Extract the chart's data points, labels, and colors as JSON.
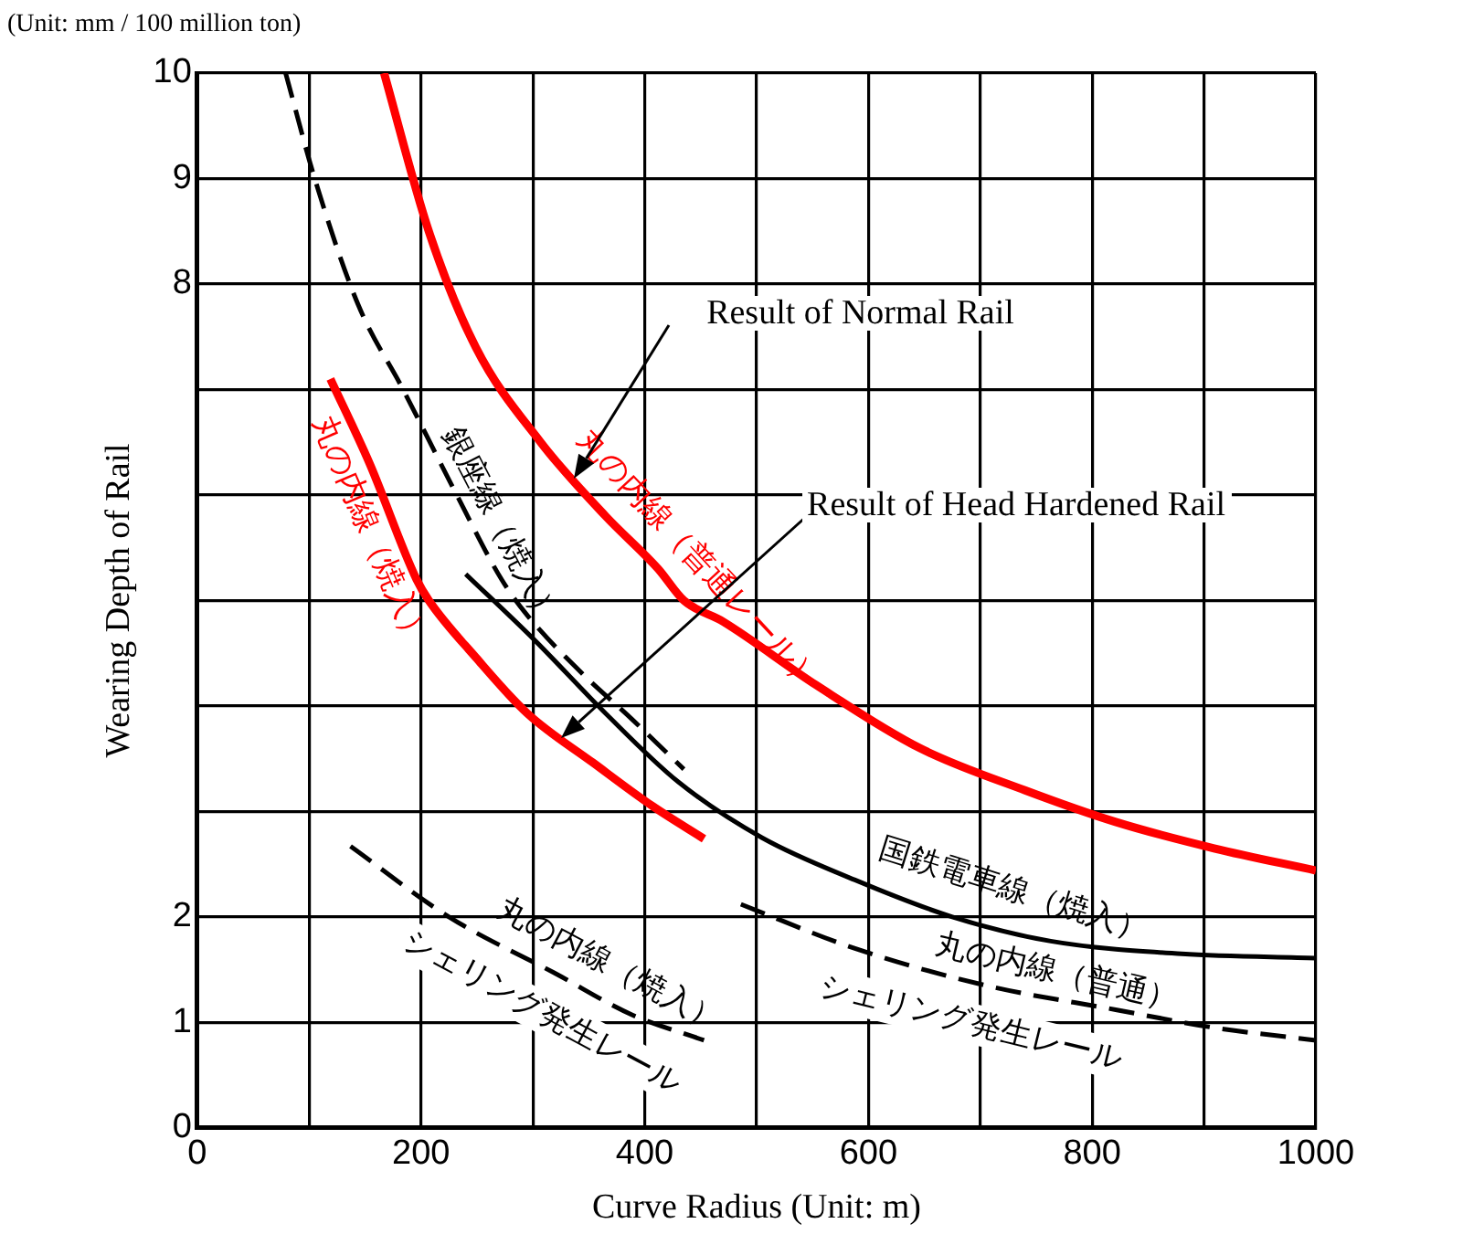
{
  "chart_data": {
    "type": "line",
    "xlabel": "Curve Radius (Unit: m)",
    "ylabel": "Wearing Depth of Rail",
    "xlim": [
      0,
      1000
    ],
    "xticks": [
      0,
      {
        "value": 100,
        "label": null
      },
      200,
      {
        "value": 300,
        "label": null
      },
      400,
      {
        "value": 500,
        "label": null
      },
      600,
      {
        "value": 700,
        "label": null
      },
      800,
      {
        "value": 900,
        "label": null
      },
      1000
    ],
    "ylim": [
      0,
      10
    ],
    "yticks": [
      0,
      1,
      2,
      {
        "value": 3,
        "label": null
      },
      {
        "value": 4,
        "label": null
      },
      {
        "value": 5,
        "label": null
      },
      {
        "value": 6,
        "label": null
      },
      {
        "value": 7,
        "label": null
      },
      8,
      9,
      10
    ],
    "grid": true,
    "legend": false,
    "marker": "none",
    "series": [
      {
        "name": "丸の内線（普通レール）",
        "color": "#ff0000",
        "line_style": "solid",
        "x": [
          167,
          207,
          249,
          307,
          365,
          412,
          435,
          470,
          553,
          646,
          740,
          821,
          909,
          1000
        ],
        "values": [
          10,
          8.5,
          7.4,
          6.5,
          5.8,
          5.3,
          5.0,
          4.8,
          4.2,
          3.6,
          3.2,
          2.9,
          2.65,
          2.44
        ]
      },
      {
        "name": "丸の内線（焼入）",
        "color": "#ff0000",
        "line_style": "solid",
        "x": [
          119,
          154,
          196,
          207,
          249,
          295,
          354,
          407,
          453
        ],
        "values": [
          7.1,
          6.3,
          5.2,
          5.0,
          4.46,
          3.93,
          3.46,
          3.05,
          2.74
        ]
      },
      {
        "name": "銀座線（焼入）",
        "color": "#000000",
        "line_style": "dashed",
        "x": [
          79,
          105,
          144,
          184,
          232,
          272,
          295,
          342,
          389,
          435
        ],
        "values": [
          10,
          9.0,
          7.8,
          7.0,
          6.0,
          5.2,
          4.86,
          4.33,
          3.87,
          3.4
        ]
      },
      {
        "name": "国鉄電車線（焼入）",
        "color": "#000000",
        "line_style": "solid",
        "x": [
          240,
          301,
          365,
          430,
          505,
          588,
          675,
          763,
          880,
          1000
        ],
        "values": [
          5.25,
          4.63,
          3.93,
          3.28,
          2.75,
          2.35,
          2.0,
          1.77,
          1.65,
          1.61
        ]
      },
      {
        "name": "丸の内線（焼入）",
        "color": "#000000",
        "line_style": "dashed",
        "x": [
          137,
          225,
          319,
          389,
          453
        ],
        "values": [
          2.67,
          2.0,
          1.47,
          1.07,
          0.83
        ]
      },
      {
        "name": "丸の内線（普通）",
        "color": "#000000",
        "line_style": "dashed",
        "x": [
          486,
          588,
          705,
          821,
          909,
          1000
        ],
        "values": [
          2.12,
          1.7,
          1.35,
          1.12,
          0.95,
          0.83
        ]
      }
    ],
    "annotations": [
      "(Unit: mm / 100 million ton)",
      "Result of Normal Rail",
      "Result of Head Hardened Rail",
      {
        "text": "シェリング発生レール",
        "x": 325,
        "y": 1.43
      },
      {
        "text": "シェリング発生レール",
        "x": 700,
        "y": 1.36
      }
    ]
  }
}
